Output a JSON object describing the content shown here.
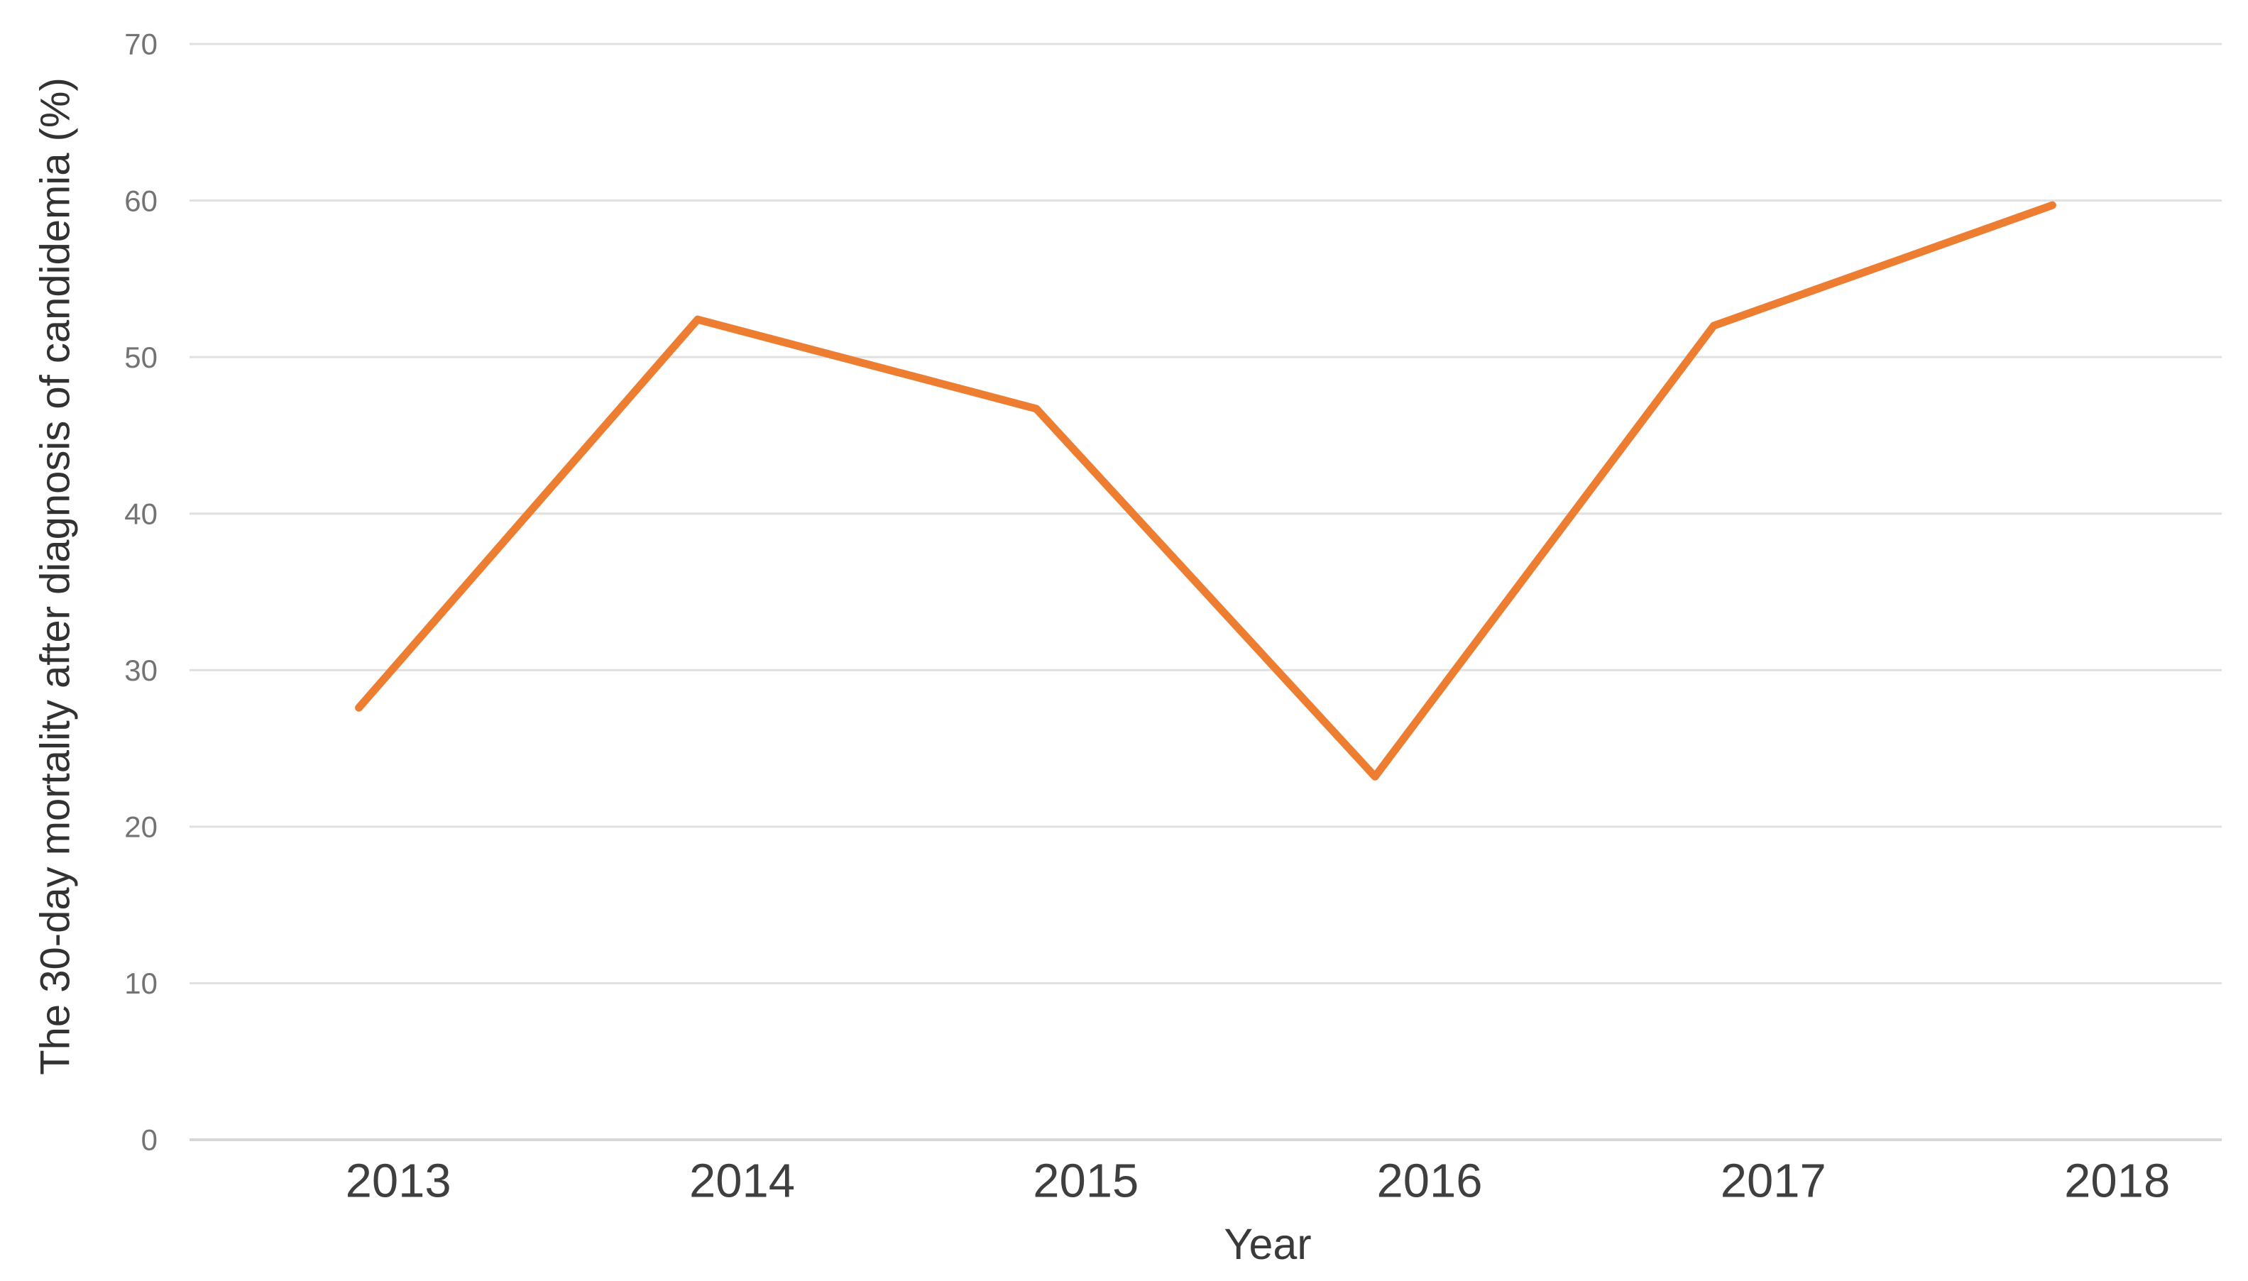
{
  "chart_data": {
    "type": "line",
    "categories": [
      "2013",
      "2014",
      "2015",
      "2016",
      "2017",
      "2018"
    ],
    "values": [
      27.6,
      52.4,
      46.7,
      23.2,
      52.0,
      59.7
    ],
    "xlabel": "Year",
    "ylabel": "The 30-day mortality after diagnosis of candidemia (%)",
    "ylim": [
      0,
      70
    ],
    "yticks": [
      0,
      10,
      20,
      30,
      40,
      50,
      60,
      70
    ],
    "grid": "horizontal",
    "legend_position": "none",
    "markers": "none",
    "colors": {
      "line": "#ED7D31",
      "gridline": "#E0E0E0",
      "axis_line": "#D6D6D6",
      "y_tick_label": "#737373",
      "x_category_label": "#3F3F3F",
      "axis_title": "#323232",
      "background": "#FFFFFF"
    }
  }
}
